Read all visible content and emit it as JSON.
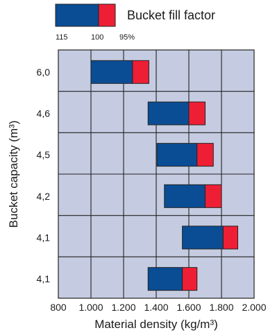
{
  "chart_data": {
    "type": "bar",
    "orientation": "horizontal",
    "xlabel": "Material density (kg/m³)",
    "ylabel": "Bucket capacity (m³)",
    "xlim": [
      800,
      2000
    ],
    "x_ticks": [
      800,
      1000,
      1200,
      1400,
      1600,
      1800,
      2000
    ],
    "x_tick_labels": [
      "800",
      "1.000",
      "1.200",
      "1.400",
      "1.600",
      "1.800",
      "2.000"
    ],
    "grid": true,
    "categories": [
      "6,0",
      "4,6",
      "4,5",
      "4,2",
      "4,1",
      "4,1"
    ],
    "segments": {
      "fill_115_to_100": {
        "color": "#0a4d94",
        "ranges": [
          [
            1000,
            1255
          ],
          [
            1350,
            1600
          ],
          [
            1405,
            1650
          ],
          [
            1450,
            1700
          ],
          [
            1560,
            1810
          ],
          [
            1350,
            1560
          ]
        ]
      },
      "fill_100_to_95": {
        "color": "#ee1f35",
        "ranges": [
          [
            1255,
            1355
          ],
          [
            1600,
            1700
          ],
          [
            1650,
            1750
          ],
          [
            1700,
            1800
          ],
          [
            1810,
            1900
          ],
          [
            1560,
            1650
          ]
        ]
      }
    },
    "legend": {
      "title": "Bucket fill factor",
      "ticks": [
        "115",
        "100",
        "95%"
      ],
      "position": "top"
    },
    "colors": {
      "plot_background": "#c5cbe0",
      "grid": "#222222",
      "bar_outline": "#222222"
    }
  }
}
